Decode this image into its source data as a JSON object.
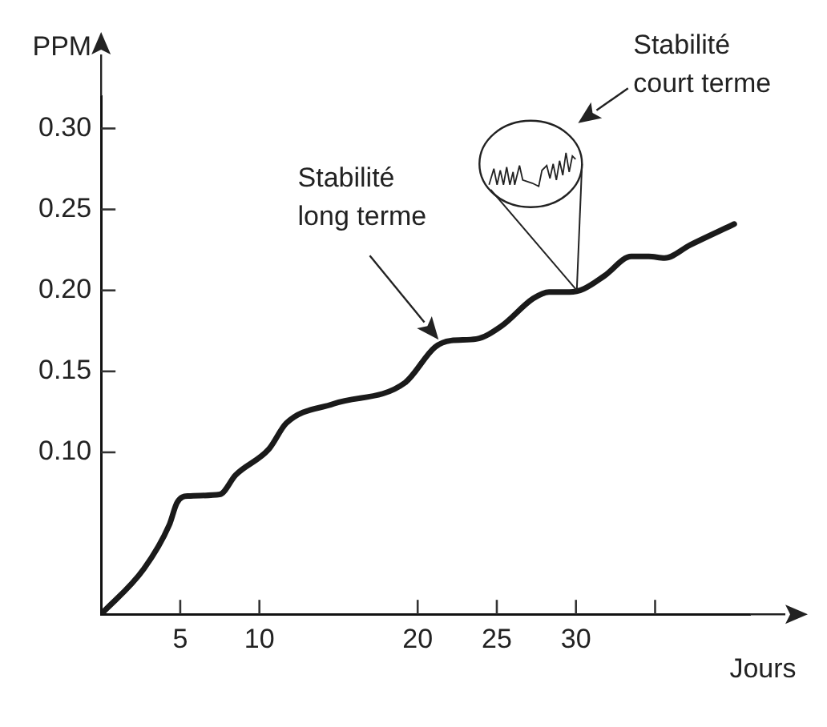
{
  "chart_data": {
    "type": "line",
    "xlabel": "Jours",
    "ylabel": "PPM",
    "x": [
      0,
      2.7,
      4.3,
      4.8,
      5.5,
      7.5,
      8.5,
      10.6,
      11.7,
      14.7,
      19.2,
      21.1,
      22.1,
      23.7,
      25.3,
      27.3,
      28.3,
      29.6,
      30.5,
      31.8,
      33.5,
      34.6,
      35.6,
      37.2,
      40
    ],
    "series": [
      {
        "color": "#1a1a1a",
        "values": [
          0,
          0.028,
          0.055,
          0.069,
          0.073,
          0.074,
          0.086,
          0.102,
          0.118,
          0.13,
          0.143,
          0.165,
          0.169,
          0.17,
          0.178,
          0.195,
          0.199,
          0.199,
          0.201,
          0.209,
          0.221,
          0.221,
          0.22,
          0.228,
          0.241
        ]
      }
    ],
    "xlim": [
      0,
      41
    ],
    "ylim": [
      0,
      0.32
    ],
    "xticks": [
      5,
      10,
      20,
      25,
      30,
      {
        "value": 35,
        "label": null
      }
    ],
    "yticks": [
      {
        "value": 0.1,
        "label": "0.10"
      },
      {
        "value": 0.15,
        "label": "0.15"
      },
      {
        "value": 0.2,
        "label": "0.20"
      },
      {
        "value": 0.25,
        "label": "0.25"
      },
      {
        "value": 0.3,
        "label": "0.30"
      }
    ],
    "annotations": [
      "Stabilité\nlong terme",
      "Stabilité\ncourt terme"
    ],
    "grid": false,
    "legend": false,
    "marker": "none",
    "line_style": "solid"
  }
}
